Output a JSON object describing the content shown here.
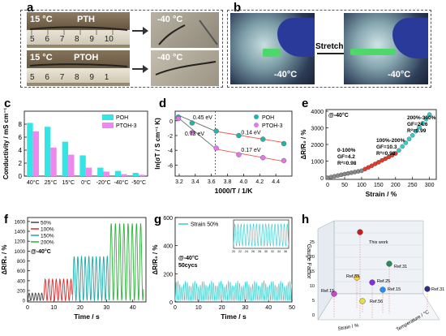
{
  "panel_labels": {
    "a": "a",
    "b": "b",
    "c": "c",
    "d": "d",
    "e": "e",
    "f": "f",
    "g": "g",
    "h": "h"
  },
  "panel_a": {
    "row1_temp": "15 °C",
    "row1_name": "PTH",
    "row1_cold": "-40 °C",
    "row2_temp": "15 °C",
    "row2_name": "PTOH",
    "row2_cold": "-40 °C",
    "ruler_digits_row1": [
      "5",
      "6",
      "7",
      "8",
      "9",
      "10"
    ],
    "ruler_digits_row2": [
      "5",
      "6",
      "7",
      "8",
      "9",
      "1"
    ]
  },
  "panel_b": {
    "left_temp": "-40°C",
    "arrow_label": "Stretch",
    "right_temp": "-40°C"
  },
  "chart_data": [
    {
      "id": "c",
      "type": "bar",
      "categories": [
        "40°C",
        "25°C",
        "15°C",
        "0°C",
        "-20°C",
        "-40°C",
        "-50°C"
      ],
      "series": [
        {
          "name": "POH",
          "color": "#33e6e6",
          "values": [
            8.2,
            7.6,
            5.3,
            3.2,
            1.3,
            0.8,
            0.5
          ]
        },
        {
          "name": "PTOH-3",
          "color": "#ee88ee",
          "values": [
            6.9,
            4.4,
            3.3,
            1.3,
            0.7,
            0.3,
            0.2
          ]
        }
      ],
      "ylabel": "Conductivity / mS cm⁻¹",
      "ylim": [
        0,
        10
      ],
      "yticks": [
        "0",
        "2",
        "4",
        "6",
        "8"
      ],
      "legend": "top-right"
    },
    {
      "id": "d",
      "type": "scatter",
      "xlabel": "1000/T / 1/K",
      "ylabel": "ln(σT / S cm⁻¹ K)",
      "xlim": [
        3.15,
        4.6
      ],
      "ylim": [
        -7.5,
        1.3
      ],
      "xticks": [
        "3.2",
        "3.4",
        "3.6",
        "3.8",
        "4.0",
        "4.2",
        "4.4"
      ],
      "yticks": [
        "0",
        "-2",
        "-4",
        "-6"
      ],
      "vline_x": 3.65,
      "series": [
        {
          "name": "POH",
          "color": "#22b5a5",
          "x": [
            3.19,
            3.36,
            3.66,
            3.94,
            4.24,
            4.5
          ],
          "y": [
            0.5,
            -0.3,
            -1.4,
            -2.0,
            -2.5,
            -3.1
          ]
        },
        {
          "name": "PTOH-3",
          "color": "#e277e6",
          "x": [
            3.19,
            3.36,
            3.66,
            3.94,
            4.24,
            4.5
          ],
          "y": [
            0.3,
            -1.6,
            -3.7,
            -4.6,
            -5.0,
            -5.4
          ]
        }
      ],
      "fits": [
        {
          "color": "#666",
          "x": [
            3.19,
            3.66
          ],
          "y": [
            0.75,
            -1.45
          ]
        },
        {
          "color": "#ee5555",
          "x": [
            3.66,
            4.5
          ],
          "y": [
            -1.45,
            -2.95
          ]
        },
        {
          "color": "#666",
          "x": [
            3.19,
            3.66
          ],
          "y": [
            0.4,
            -3.85
          ]
        },
        {
          "color": "#ee5555",
          "x": [
            3.66,
            4.5
          ],
          "y": [
            -3.85,
            -5.5
          ]
        }
      ],
      "annotations": [
        {
          "text": "0.45 eV",
          "x": 3.37,
          "y": 0.2
        },
        {
          "text": "0.14 eV",
          "x": 3.97,
          "y": -1.85
        },
        {
          "text": "0.73 eV",
          "x": 3.27,
          "y": -2.0
        },
        {
          "text": "0.17 eV",
          "x": 3.97,
          "y": -4.2
        }
      ],
      "legend": "top-right"
    },
    {
      "id": "e",
      "type": "scatter",
      "corner_text": "@-40°C",
      "xlabel": "Strain / %",
      "ylabel": "ΔR/R₀ / %",
      "xlim": [
        -5,
        320
      ],
      "ylim": [
        -100,
        4100
      ],
      "xticks": [
        "0",
        "50",
        "100",
        "150",
        "200",
        "250",
        "300"
      ],
      "yticks": [
        "0",
        "1000",
        "2000",
        "3000",
        "4000"
      ],
      "segments": [
        {
          "range": "0-100%",
          "gf": "GF=4.2",
          "r2": "R²=0.98",
          "color": "#888888",
          "x": [
            0,
            10,
            20,
            30,
            40,
            50,
            60,
            70,
            80,
            90,
            100
          ],
          "y": [
            0,
            40,
            85,
            130,
            175,
            220,
            260,
            300,
            340,
            380,
            420
          ]
        },
        {
          "range": "100%-200%",
          "gf": "GF=10.3",
          "r2": "R²=0.98",
          "color": "#e23b2e",
          "x": [
            110,
            120,
            130,
            140,
            150,
            160,
            170,
            180,
            190,
            200
          ],
          "y": [
            520,
            620,
            720,
            830,
            930,
            1040,
            1140,
            1250,
            1360,
            1460
          ]
        },
        {
          "range": "200%-300%",
          "gf": "GF=24.6",
          "r2": "R²=0.99",
          "color": "#33cccc",
          "x": [
            210,
            220,
            230,
            240,
            250,
            260,
            270,
            280,
            290,
            300
          ],
          "y": [
            1650,
            1880,
            2100,
            2330,
            2550,
            2800,
            3040,
            3280,
            3530,
            3800
          ]
        }
      ]
    },
    {
      "id": "f",
      "type": "line",
      "corner_text": "@-40°C",
      "xlabel": "Time / s",
      "ylabel": "ΔR/R₀ / %",
      "xlim": [
        0,
        45
      ],
      "ylim": [
        -30,
        1680
      ],
      "xticks": [
        "0",
        "10",
        "20",
        "30",
        "40"
      ],
      "yticks": [
        "0",
        "200",
        "400",
        "600",
        "800",
        "1000",
        "1200",
        "1400",
        "1600"
      ],
      "series": [
        {
          "name": "50%",
          "color": "#444444",
          "t": [
            0,
            6
          ],
          "period": 1.2,
          "amp": 150
        },
        {
          "name": "100%",
          "color": "#e02828",
          "t": [
            6,
            17
          ],
          "period": 1.4,
          "amp": 430
        },
        {
          "name": "150%",
          "color": "#19a8a8",
          "t": [
            17,
            31
          ],
          "period": 1.4,
          "amp": 890
        },
        {
          "name": "200%",
          "color": "#2db33a",
          "t": [
            31,
            44
          ],
          "period": 1.6,
          "amp": 1560
        }
      ],
      "legend": "top-left"
    },
    {
      "id": "g",
      "type": "line",
      "corner_text": "@-40°C",
      "sub_text": "50cycs",
      "xlabel": "Time / s",
      "ylabel": "ΔR/R₀ / %",
      "xlim": [
        0,
        50
      ],
      "ylim": [
        0,
        600
      ],
      "xticks": [
        "0",
        "10",
        "20",
        "30",
        "40",
        "50"
      ],
      "yticks": [
        "0",
        "200",
        "400",
        "600"
      ],
      "series": [
        {
          "name": "Strain 50%",
          "color": "#33cccc",
          "t": [
            0,
            50
          ],
          "period": 0.8,
          "amp": 140
        }
      ],
      "inset": {
        "xlim": [
          20,
          37
        ],
        "xticks": [
          "20",
          "22",
          "24",
          "26",
          "28",
          "30",
          "32",
          "34",
          "36"
        ]
      },
      "legend": "top-left"
    },
    {
      "id": "h",
      "type": "scatter",
      "title": "",
      "zlabel": "Gauge Factor",
      "xlabel": "Strain / %",
      "ylabel": "Temperature / °C",
      "zticks": [
        "0",
        "5",
        "10",
        "15",
        "20",
        "25"
      ],
      "points": [
        {
          "label": "This work",
          "color": "#d11a1a"
        },
        {
          "label": "Ref.31",
          "color": "#2e8b57"
        },
        {
          "label": "Ref.59",
          "color": "#ffd24d"
        },
        {
          "label": "Ref.25",
          "color": "#8a2be2"
        },
        {
          "label": "Ref.15",
          "color": "#1e90ff"
        },
        {
          "label": "Ref.31",
          "color": "#2d2d8c"
        },
        {
          "label": "Ref.15",
          "color": "#cc44cc"
        },
        {
          "label": "Ref.56",
          "color": "#e8e040"
        }
      ]
    }
  ]
}
